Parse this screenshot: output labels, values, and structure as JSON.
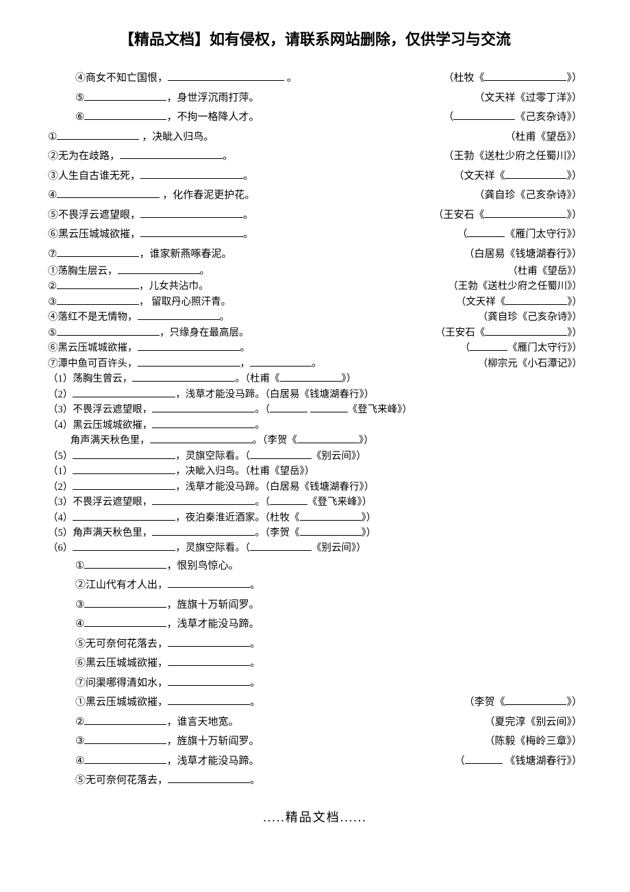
{
  "header": "【精品文档】如有侵权，请联系网站删除，仅供学习与交流",
  "footer": ".....精品文档......",
  "lines": [
    {
      "cls": "indent-1",
      "left": [
        "④商女不知亡国恨，",
        {
          "u": "u-xl"
        },
        " 。"
      ],
      "right": [
        "（杜牧《",
        {
          "u": "u-m"
        },
        "》）"
      ]
    },
    {
      "cls": "indent-1",
      "left": [
        "⑤",
        {
          "u": "u-m"
        },
        "，身世浮沉雨打萍。"
      ],
      "right": [
        "（文天祥《过零丁洋》）"
      ]
    },
    {
      "cls": "indent-1",
      "left": [
        "⑥",
        {
          "u": "u-m"
        },
        "，不拘一格降人才。"
      ],
      "right": [
        "（",
        {
          "u": "u-s"
        },
        "《己亥杂诗》）"
      ]
    },
    {
      "cls": "",
      "left": [
        "①",
        {
          "u": "u-m"
        },
        " ，决眦入归鸟。"
      ],
      "right": [
        "（杜甫《望岳》）"
      ]
    },
    {
      "cls": "",
      "left": [
        "②无为在歧路，",
        {
          "u": "u-l"
        },
        "。"
      ],
      "right": [
        "（王勃《送杜少府之任蜀川》）"
      ]
    },
    {
      "cls": "",
      "left": [
        "③人生自古谁无死，",
        {
          "u": "u-l"
        },
        "。"
      ],
      "right": [
        "（文天祥《",
        {
          "u": "u-s"
        },
        "》）"
      ]
    },
    {
      "cls": "",
      "left": [
        "④",
        {
          "u": "u-l"
        },
        " ，化作春泥更护花。"
      ],
      "right": [
        "（龚自珍《己亥杂诗》）"
      ]
    },
    {
      "cls": "",
      "left": [
        "⑤不畏浮云遮望眼，",
        {
          "u": "u-l"
        },
        "。"
      ],
      "right": [
        "（王安石《",
        {
          "u": "u-m"
        },
        "》）"
      ]
    },
    {
      "cls": "",
      "left": [
        "⑥黑云压城城欲摧，",
        {
          "u": "u-l"
        },
        "。"
      ],
      "right": [
        "（",
        {
          "u": "u-xs"
        },
        "《雁门太守行》）"
      ]
    },
    {
      "cls": "",
      "left": [
        "⑦",
        {
          "u": "u-m"
        },
        "，谁家新燕啄春泥。"
      ],
      "right": [
        "（白居易《钱塘湖春行》）"
      ]
    },
    {
      "cls": "compact",
      "left": [
        "①荡胸生层云，",
        {
          "u": "u-m"
        },
        "。"
      ],
      "right": [
        "（杜甫《望岳》）"
      ]
    },
    {
      "cls": "compact",
      "left": [
        "②",
        {
          "u": "u-m"
        },
        "，儿女共沾巾。"
      ],
      "right": [
        "（王勃《送杜少府之任蜀川》）"
      ]
    },
    {
      "cls": "compact",
      "left": [
        "③",
        {
          "u": "u-m"
        },
        "， 留取丹心照汗青。"
      ],
      "right": [
        "（文天祥《",
        {
          "u": "u-s"
        },
        "》）"
      ]
    },
    {
      "cls": "compact",
      "left": [
        "④落红不是无情物，",
        {
          "u": "u-m"
        },
        "。"
      ],
      "right": [
        "（龚自珍《己亥杂诗》）"
      ]
    },
    {
      "cls": "compact",
      "left": [
        "⑤",
        {
          "u": "u-l"
        },
        "，只缘身在最高层。"
      ],
      "right": [
        "（王安石《",
        {
          "u": "u-m"
        },
        "》）"
      ]
    },
    {
      "cls": "compact",
      "left": [
        "⑥黑云压城城欲摧，",
        {
          "u": "u-l"
        },
        "。"
      ],
      "right": [
        "（",
        {
          "u": "u-xs"
        },
        "《雁门太守行》）"
      ]
    },
    {
      "cls": "compact",
      "left": [
        "⑦潭中鱼可百许头，",
        {
          "u": "u-l"
        },
        "，",
        {
          "u": "u-s"
        },
        "。"
      ],
      "right": [
        "（柳宗元《小石潭记》）"
      ]
    },
    {
      "cls": "compact",
      "left": [
        "（1）荡胸生曾云，",
        {
          "u": "u-l"
        },
        "。（杜甫《",
        {
          "u": "u-s"
        },
        "》）"
      ],
      "right": []
    },
    {
      "cls": "compact",
      "left": [
        "（2）",
        {
          "u": "u-l"
        },
        "，浅草才能没马蹄。（白居易《钱塘湖春行》）"
      ],
      "right": []
    },
    {
      "cls": "compact",
      "left": [
        "（3）不畏浮云遮望眼，",
        {
          "u": "u-l"
        },
        "。（",
        {
          "u": "u-xs"
        },
        " ",
        {
          "u": "u-xs"
        },
        "《登飞来峰》）"
      ],
      "right": []
    },
    {
      "cls": "compact",
      "left": [
        "（4）黑云压城城欲摧，",
        {
          "u": "u-l"
        },
        "。"
      ],
      "right": []
    },
    {
      "cls": "compact",
      "left": [
        "　　 角声满天秋色里，",
        {
          "u": "u-l"
        },
        "。（李贺《",
        {
          "u": "u-s"
        },
        "》）"
      ],
      "right": []
    },
    {
      "cls": "compact",
      "left": [
        "（5）",
        {
          "u": "u-l"
        },
        "，灵旗空际看。（",
        {
          "u": "u-s"
        },
        "《别云间》）"
      ],
      "right": []
    },
    {
      "cls": "compact",
      "left": [
        "（1）",
        {
          "u": "u-l"
        },
        "，决眦入归鸟。（杜甫《望岳》）"
      ],
      "right": []
    },
    {
      "cls": "compact",
      "left": [
        "（2）",
        {
          "u": "u-l"
        },
        "，浅草才能没马蹄。（白居易《钱塘湖春行》）"
      ],
      "right": []
    },
    {
      "cls": "compact",
      "left": [
        "（3）不畏浮云遮望眼，",
        {
          "u": "u-l"
        },
        "。（",
        {
          "u": "u-xs"
        },
        "《登飞来峰》）"
      ],
      "right": []
    },
    {
      "cls": "compact",
      "left": [
        "（4）",
        {
          "u": "u-l"
        },
        "，夜泊秦淮近酒家。（杜牧《",
        {
          "u": "u-s"
        },
        "》）"
      ],
      "right": []
    },
    {
      "cls": "compact",
      "left": [
        "（5）角声满天秋色里，",
        {
          "u": "u-l"
        },
        "。（李贺《",
        {
          "u": "u-s"
        },
        "》）"
      ],
      "right": []
    },
    {
      "cls": "compact",
      "left": [
        "（6）",
        {
          "u": "u-l"
        },
        "，灵旗空际看。（",
        {
          "u": "u-s"
        },
        "《别云间》）"
      ],
      "right": []
    },
    {
      "cls": "indent-1",
      "left": [
        "①",
        {
          "u": "u-m"
        },
        "，恨别鸟惊心。"
      ],
      "right": []
    },
    {
      "cls": "indent-1",
      "left": [
        "②江山代有才人出，",
        {
          "u": "u-m"
        },
        "。"
      ],
      "right": []
    },
    {
      "cls": "indent-1",
      "left": [
        "③",
        {
          "u": "u-m"
        },
        "，旌旗十万斩阎罗。"
      ],
      "right": []
    },
    {
      "cls": "indent-1",
      "left": [
        "④",
        {
          "u": "u-m"
        },
        "，浅草才能没马蹄。"
      ],
      "right": []
    },
    {
      "cls": "indent-1",
      "left": [
        "⑤无可奈何花落去，",
        {
          "u": "u-m"
        },
        "。"
      ],
      "right": []
    },
    {
      "cls": "indent-1",
      "left": [
        "⑥黑云压城城欲摧，",
        {
          "u": "u-m"
        },
        "。"
      ],
      "right": []
    },
    {
      "cls": "indent-1",
      "left": [
        "⑦问渠哪得清如水，",
        {
          "u": "u-m"
        },
        "。"
      ],
      "right": []
    },
    {
      "cls": "indent-1",
      "left": [
        "①黑云压城城欲摧，",
        {
          "u": "u-m"
        },
        "。"
      ],
      "right": [
        "（李贺《",
        {
          "u": "u-s"
        },
        "》）"
      ]
    },
    {
      "cls": "indent-1",
      "left": [
        "②",
        {
          "u": "u-m"
        },
        "，谁言天地宽。"
      ],
      "right": [
        "（夏完淳《别云间》）"
      ]
    },
    {
      "cls": "indent-1",
      "left": [
        "③",
        {
          "u": "u-m"
        },
        "，旌旗十万斩阎罗。"
      ],
      "right": [
        "（陈毅《梅岭三章》）"
      ]
    },
    {
      "cls": "indent-1",
      "left": [
        "④",
        {
          "u": "u-m"
        },
        "，浅草才能没马蹄。"
      ],
      "right": [
        "（",
        {
          "u": "u-xs"
        },
        " 《钱塘湖春行》）"
      ]
    },
    {
      "cls": "indent-1",
      "left": [
        "⑤无可奈何花落去，",
        {
          "u": "u-m"
        },
        "。"
      ],
      "right": []
    }
  ]
}
